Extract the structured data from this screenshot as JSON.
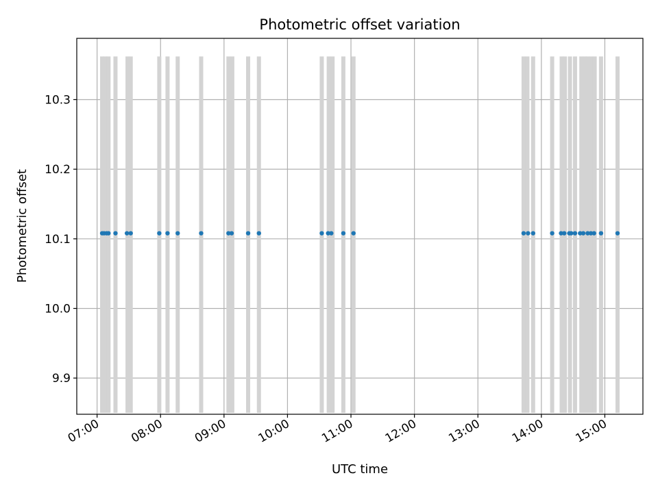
{
  "chart_data": {
    "type": "scatter",
    "title": "Photometric offset variation",
    "xlabel": "UTC time",
    "ylabel": "Photometric offset",
    "x_unit": "hours (UTC)",
    "xlim": [
      6.68,
      15.6
    ],
    "ylim": [
      9.848,
      10.388
    ],
    "grid": true,
    "xticks": [
      {
        "value": 7,
        "label": "07:00"
      },
      {
        "value": 8,
        "label": "08:00"
      },
      {
        "value": 9,
        "label": "09:00"
      },
      {
        "value": 10,
        "label": "10:00"
      },
      {
        "value": 11,
        "label": "11:00"
      },
      {
        "value": 12,
        "label": "12:00"
      },
      {
        "value": 13,
        "label": "13:00"
      },
      {
        "value": 14,
        "label": "14:00"
      },
      {
        "value": 15,
        "label": "15:00"
      }
    ],
    "yticks": [
      {
        "value": 9.9,
        "label": "9.9"
      },
      {
        "value": 10.0,
        "label": "10.0"
      },
      {
        "value": 10.1,
        "label": "10.1"
      },
      {
        "value": 10.2,
        "label": "10.2"
      },
      {
        "value": 10.3,
        "label": "10.3"
      }
    ],
    "bands": {
      "color": "#d3d3d3",
      "ymin": 9.85,
      "ymax": 10.362,
      "x": [
        7.08,
        7.13,
        7.18,
        7.29,
        7.48,
        7.53,
        7.98,
        8.11,
        8.27,
        8.64,
        9.07,
        9.13,
        9.38,
        9.55,
        10.54,
        10.65,
        10.71,
        10.88,
        11.04,
        13.72,
        13.78,
        13.87,
        14.17,
        14.32,
        14.37,
        14.45,
        14.53,
        14.63,
        14.68,
        14.73,
        14.79,
        14.84,
        14.94,
        15.2
      ]
    },
    "series": [
      {
        "color": "#1f77b4",
        "x": [
          7.08,
          7.11,
          7.15,
          7.18,
          7.29,
          7.47,
          7.53,
          7.98,
          8.11,
          8.27,
          8.64,
          9.07,
          9.12,
          9.38,
          9.55,
          10.54,
          10.64,
          10.69,
          10.88,
          11.04,
          13.72,
          13.79,
          13.87,
          14.17,
          14.31,
          14.36,
          14.44,
          14.47,
          14.53,
          14.61,
          14.66,
          14.73,
          14.78,
          14.83,
          14.94,
          15.2
        ],
        "y": [
          10.108,
          10.108,
          10.108,
          10.108,
          10.108,
          10.108,
          10.108,
          10.108,
          10.108,
          10.108,
          10.108,
          10.108,
          10.108,
          10.108,
          10.108,
          10.108,
          10.108,
          10.108,
          10.108,
          10.108,
          10.108,
          10.108,
          10.108,
          10.108,
          10.108,
          10.108,
          10.108,
          10.108,
          10.108,
          10.108,
          10.108,
          10.108,
          10.108,
          10.108,
          10.108,
          10.108
        ]
      }
    ]
  }
}
